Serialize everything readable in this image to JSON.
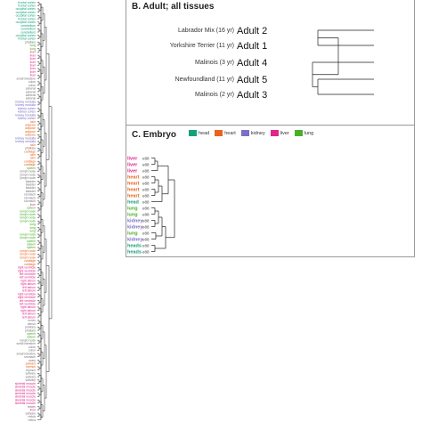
{
  "panel_b": {
    "title": "B. Adult; all tissues",
    "leaves": [
      {
        "sample": "Labrador Mix (16 yr)",
        "label": "Adult 2"
      },
      {
        "sample": "Yorkshire Terrier (11 yr)",
        "label": "Adult 1"
      },
      {
        "sample": "Malinois (3 yr)",
        "label": "Adult 4"
      },
      {
        "sample": "Newfoundland (11 yr)",
        "label": "Adult 5"
      },
      {
        "sample": "Malinois (2 yr)",
        "label": "Adult 3"
      }
    ]
  },
  "panel_c": {
    "title": "C. Embryo",
    "legend": [
      {
        "label": "head",
        "color": "#14a07a"
      },
      {
        "label": "heart",
        "color": "#e8641c"
      },
      {
        "label": "kidney",
        "color": "#7b6fc4"
      },
      {
        "label": "liver",
        "color": "#e0268c"
      },
      {
        "label": "lung",
        "color": "#4aae2a"
      }
    ],
    "leaves": [
      {
        "tissue": "liver",
        "tag": "e88",
        "color": "#e0268c"
      },
      {
        "tissue": "liver",
        "tag": "e88",
        "color": "#e0268c"
      },
      {
        "tissue": "liver",
        "tag": "e88",
        "color": "#e0268c"
      },
      {
        "tissue": "heart",
        "tag": "e88",
        "color": "#e8641c"
      },
      {
        "tissue": "heart",
        "tag": "e88",
        "color": "#e8641c"
      },
      {
        "tissue": "heart",
        "tag": "e88",
        "color": "#e8641c"
      },
      {
        "tissue": "heart",
        "tag": "e88",
        "color": "#e8641c"
      },
      {
        "tissue": "head",
        "tag": "e88",
        "color": "#14a07a"
      },
      {
        "tissue": "lung",
        "tag": "e88",
        "color": "#4aae2a"
      },
      {
        "tissue": "lung",
        "tag": "e88",
        "color": "#4aae2a"
      },
      {
        "tissue": "kidney",
        "tag": "e88",
        "color": "#7b6fc4"
      },
      {
        "tissue": "kidney",
        "tag": "e88",
        "color": "#7b6fc4"
      },
      {
        "tissue": "lung",
        "tag": "e88",
        "color": "#4aae2a"
      },
      {
        "tissue": "kidney",
        "tag": "e88",
        "color": "#7b6fc4"
      },
      {
        "tissue": "heads",
        "tag": "e88",
        "color": "#14a07a"
      },
      {
        "tissue": "heads",
        "tag": "e88",
        "color": "#14a07a"
      }
    ]
  },
  "panel_a": {
    "leaves": [
      {
        "label": "frontal cortex",
        "color": "#14a07a"
      },
      {
        "label": "frontal cortex",
        "color": "#14a07a"
      },
      {
        "label": "occipital cortex",
        "color": "#14a07a"
      },
      {
        "label": "occipital cortex",
        "color": "#14a07a"
      },
      {
        "label": "occipital cortex",
        "color": "#14a07a"
      },
      {
        "label": "frontal cortex",
        "color": "#14a07a"
      },
      {
        "label": "occipital cortex",
        "color": "#14a07a"
      },
      {
        "label": "cerebellum",
        "color": "#14a07a"
      },
      {
        "label": "cerebellum",
        "color": "#14a07a"
      },
      {
        "label": "cerebellum",
        "color": "#14a07a"
      },
      {
        "label": "occipital cortex",
        "color": "#14a07a"
      },
      {
        "label": "frontal cortex",
        "color": "#14a07a"
      },
      {
        "label": "pituitary",
        "color": "#777777"
      },
      {
        "label": "lung",
        "color": "#4aae2a"
      },
      {
        "label": "lung",
        "color": "#4aae2a"
      },
      {
        "label": "liver",
        "color": "#e0268c"
      },
      {
        "label": "liver",
        "color": "#e0268c"
      },
      {
        "label": "liver",
        "color": "#e0268c"
      },
      {
        "label": "liver",
        "color": "#e0268c"
      },
      {
        "label": "liver",
        "color": "#e0268c"
      },
      {
        "label": "liver",
        "color": "#e0268c"
      },
      {
        "label": "liver",
        "color": "#e0268c"
      },
      {
        "label": "liver",
        "color": "#e0268c"
      },
      {
        "label": "small intestine",
        "color": "#777777"
      },
      {
        "label": "colon",
        "color": "#777777"
      },
      {
        "label": "colon",
        "color": "#777777"
      },
      {
        "label": "adrenal",
        "color": "#777777"
      },
      {
        "label": "adrenal",
        "color": "#777777"
      },
      {
        "label": "adrenal",
        "color": "#777777"
      },
      {
        "label": "adrenal",
        "color": "#777777"
      },
      {
        "label": "kidney medulla",
        "color": "#7b6fc4"
      },
      {
        "label": "kidney medulla",
        "color": "#7b6fc4"
      },
      {
        "label": "kidney cortex",
        "color": "#7b6fc4"
      },
      {
        "label": "kidney cortex",
        "color": "#7b6fc4"
      },
      {
        "label": "kidney medulla",
        "color": "#7b6fc4"
      },
      {
        "label": "kidney cortex",
        "color": "#7b6fc4"
      },
      {
        "label": "skin",
        "color": "#e8641c"
      },
      {
        "label": "adipose",
        "color": "#e8641c"
      },
      {
        "label": "adipose",
        "color": "#e8641c"
      },
      {
        "label": "adipose",
        "color": "#e8641c"
      },
      {
        "label": "adipose",
        "color": "#e8641c"
      },
      {
        "label": "kidney medulla",
        "color": "#7b6fc4"
      },
      {
        "label": "kidney medulla",
        "color": "#7b6fc4"
      },
      {
        "label": "skin",
        "color": "#e8641c"
      },
      {
        "label": "pituitary",
        "color": "#777777"
      },
      {
        "label": "cartilage",
        "color": "#e8641c"
      },
      {
        "label": "skin",
        "color": "#e8641c"
      },
      {
        "label": "skin",
        "color": "#e8641c"
      },
      {
        "label": "cartilage",
        "color": "#e8641c"
      },
      {
        "label": "cartilage",
        "color": "#e8641c"
      },
      {
        "label": "spleen",
        "color": "#4aae2a"
      },
      {
        "label": "lymph node",
        "color": "#777777"
      },
      {
        "label": "lymph node",
        "color": "#777777"
      },
      {
        "label": "lymph node",
        "color": "#777777"
      },
      {
        "label": "bladder",
        "color": "#777777"
      },
      {
        "label": "bladder",
        "color": "#777777"
      },
      {
        "label": "bladder",
        "color": "#777777"
      },
      {
        "label": "bladder",
        "color": "#777777"
      },
      {
        "label": "stomach",
        "color": "#777777"
      },
      {
        "label": "stomach",
        "color": "#777777"
      },
      {
        "label": "stomach",
        "color": "#777777"
      },
      {
        "label": "liver",
        "color": "#e0268c"
      },
      {
        "label": "spleen",
        "color": "#4aae2a"
      },
      {
        "label": "lymph node",
        "color": "#4aae2a"
      },
      {
        "label": "lymph node",
        "color": "#4aae2a"
      },
      {
        "label": "lymph node",
        "color": "#4aae2a"
      },
      {
        "label": "lymph node",
        "color": "#4aae2a"
      },
      {
        "label": "lung",
        "color": "#4aae2a"
      },
      {
        "label": "lung",
        "color": "#4aae2a"
      },
      {
        "label": "lung",
        "color": "#4aae2a"
      },
      {
        "label": "lymph node",
        "color": "#4aae2a"
      },
      {
        "label": "lymph node",
        "color": "#4aae2a"
      },
      {
        "label": "spleen",
        "color": "#4aae2a"
      },
      {
        "label": "spleen",
        "color": "#4aae2a"
      },
      {
        "label": "spleen",
        "color": "#4aae2a"
      },
      {
        "label": "lymph node",
        "color": "#e8641c"
      },
      {
        "label": "lymph node",
        "color": "#e8641c"
      },
      {
        "label": "lymph node",
        "color": "#e8641c"
      },
      {
        "label": "cartilage",
        "color": "#e8641c"
      },
      {
        "label": "cartilage",
        "color": "#e8641c"
      },
      {
        "label": "right ventricle",
        "color": "#e0268c"
      },
      {
        "label": "right ventricle",
        "color": "#e0268c"
      },
      {
        "label": "left ventricle",
        "color": "#e0268c"
      },
      {
        "label": "left ventricle",
        "color": "#e0268c"
      },
      {
        "label": "right atrium",
        "color": "#e0268c"
      },
      {
        "label": "right atrium",
        "color": "#e0268c"
      },
      {
        "label": "left atrium",
        "color": "#e0268c"
      },
      {
        "label": "left atrium",
        "color": "#e0268c"
      },
      {
        "label": "right ventricle",
        "color": "#e0268c"
      },
      {
        "label": "right ventricle",
        "color": "#e0268c"
      },
      {
        "label": "left ventricle",
        "color": "#e0268c"
      },
      {
        "label": "left ventricle",
        "color": "#e0268c"
      },
      {
        "label": "right atrium",
        "color": "#e0268c"
      },
      {
        "label": "right atrium",
        "color": "#e0268c"
      },
      {
        "label": "left atrium",
        "color": "#e0268c"
      },
      {
        "label": "left atrium",
        "color": "#e0268c"
      },
      {
        "label": "cervix",
        "color": "#777777"
      },
      {
        "label": "uterus",
        "color": "#777777"
      },
      {
        "label": "pituitary",
        "color": "#777777"
      },
      {
        "label": "pituitary",
        "color": "#777777"
      },
      {
        "label": "spleen",
        "color": "#4aae2a"
      },
      {
        "label": "spleen",
        "color": "#4aae2a"
      },
      {
        "label": "lymph node",
        "color": "#777777"
      },
      {
        "label": "small intestine",
        "color": "#777777"
      },
      {
        "label": "colon",
        "color": "#777777"
      },
      {
        "label": "colon",
        "color": "#777777"
      },
      {
        "label": "small intestine",
        "color": "#777777"
      },
      {
        "label": "stomach",
        "color": "#777777"
      },
      {
        "label": "ovary",
        "color": "#777777"
      },
      {
        "label": "salivary",
        "color": "#e8641c"
      },
      {
        "label": "thymus",
        "color": "#e8641c"
      },
      {
        "label": "thymus",
        "color": "#777777"
      },
      {
        "label": "salivary",
        "color": "#777777"
      },
      {
        "label": "salivary",
        "color": "#777777"
      },
      {
        "label": "salivary",
        "color": "#777777"
      },
      {
        "label": "skeletal muscle",
        "color": "#e0268c"
      },
      {
        "label": "skeletal muscle",
        "color": "#e0268c"
      },
      {
        "label": "skeletal muscle",
        "color": "#e0268c"
      },
      {
        "label": "skeletal muscle",
        "color": "#e0268c"
      },
      {
        "label": "skeletal muscle",
        "color": "#e0268c"
      },
      {
        "label": "skeletal muscle",
        "color": "#e0268c"
      },
      {
        "label": "skeletal muscle",
        "color": "#e0268c"
      },
      {
        "label": "testes",
        "color": "#777777"
      },
      {
        "label": "liver",
        "color": "#e0268c"
      },
      {
        "label": "salivary",
        "color": "#777777"
      },
      {
        "label": "retina",
        "color": "#777777"
      },
      {
        "label": "retina",
        "color": "#777777"
      }
    ]
  }
}
